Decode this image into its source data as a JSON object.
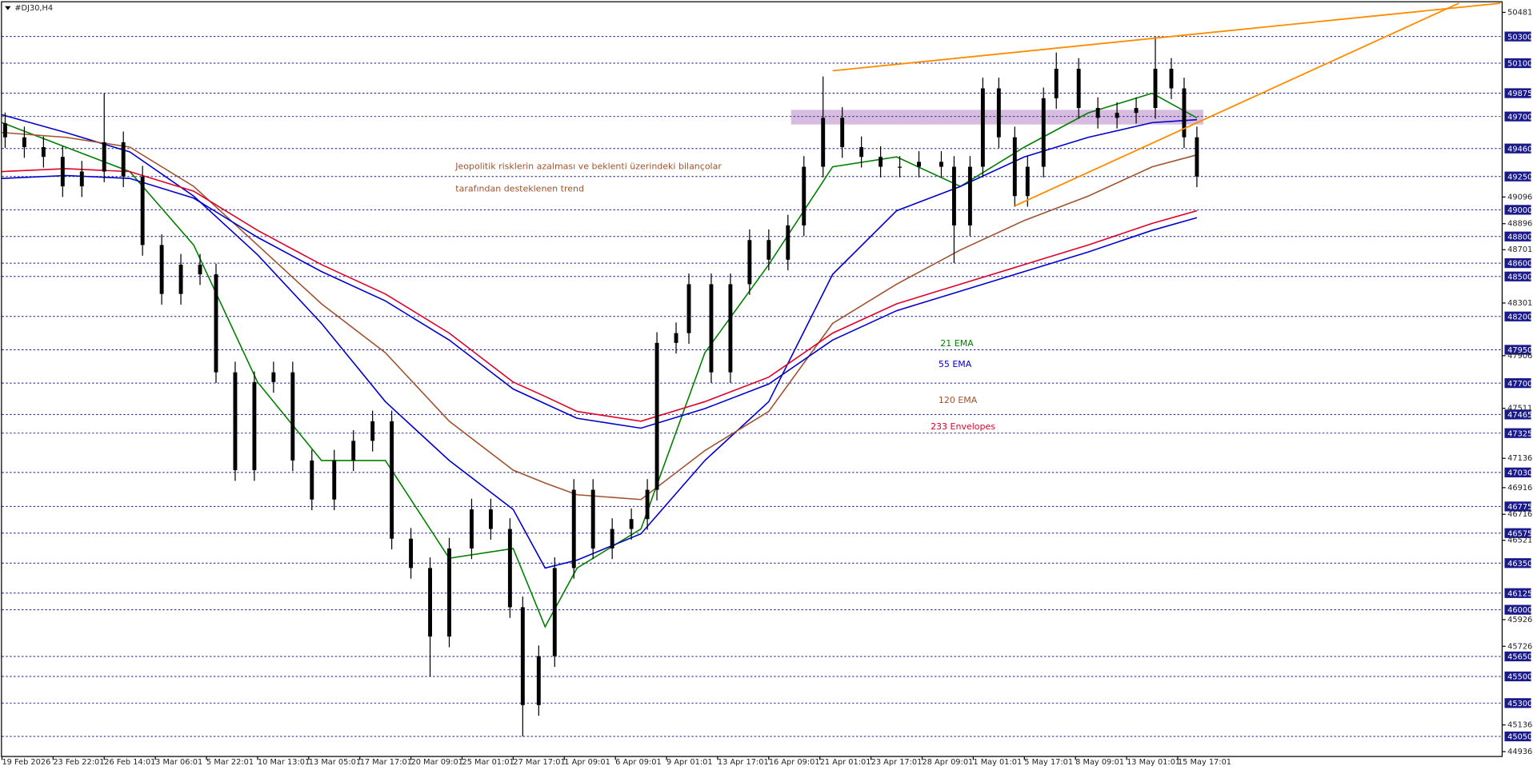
{
  "chart_data": {
    "type": "candlestick",
    "title": "#DJ30,H4",
    "xlim": [
      0,
      470
    ],
    "ylim": [
      44903,
      50557
    ],
    "xticks": [
      {
        "value": 0,
        "label": "19 Feb 2026"
      },
      {
        "value": 16,
        "label": "23 Feb 22:01"
      },
      {
        "value": 32,
        "label": "26 Feb 14:01"
      },
      {
        "value": 48,
        "label": "3 Mar 06:01"
      },
      {
        "value": 64,
        "label": "5 Mar 22:01"
      },
      {
        "value": 80,
        "label": "10 Mar 13:01"
      },
      {
        "value": 96,
        "label": "13 Mar 05:01"
      },
      {
        "value": 112,
        "label": "17 Mar 17:01"
      },
      {
        "value": 128,
        "label": "20 Mar 09:01"
      },
      {
        "value": 144,
        "label": "25 Mar 01:01"
      },
      {
        "value": 160,
        "label": "27 Mar 17:01"
      },
      {
        "value": 176,
        "label": "1 Apr 09:01"
      },
      {
        "value": 192,
        "label": "6 Apr 09:01"
      },
      {
        "value": 208,
        "label": "9 Apr 01:01"
      },
      {
        "value": 224,
        "label": "13 Apr 17:01"
      },
      {
        "value": 240,
        "label": "16 Apr 09:01"
      },
      {
        "value": 256,
        "label": "21 Apr 01:01"
      },
      {
        "value": 272,
        "label": "23 Apr 17:01"
      },
      {
        "value": 288,
        "label": "28 Apr 09:01"
      },
      {
        "value": 304,
        "label": "1 May 01:01"
      },
      {
        "value": 320,
        "label": "5 May 17:01"
      },
      {
        "value": 336,
        "label": "8 May 09:01"
      },
      {
        "value": 352,
        "label": "13 May 01:01"
      },
      {
        "value": 368,
        "label": "15 May 17:01"
      }
    ],
    "yticks": [
      50481,
      49096,
      48896,
      48701,
      48301,
      47906,
      47511,
      47136,
      46916,
      46716,
      46521,
      45926,
      45726,
      45136,
      44936
    ],
    "levels": [
      50300,
      50100,
      49875,
      49700,
      49460,
      49250,
      49000,
      48800,
      48600,
      48500,
      48200,
      47950,
      47700,
      47465,
      47325,
      47030,
      46775,
      46575,
      46350,
      46125,
      46000,
      45650,
      45500,
      45300,
      45050
    ],
    "level_color": "#1a1a8c",
    "candle_color": "#000000",
    "x": [
      1,
      7,
      13,
      19,
      25,
      32,
      38,
      44,
      50,
      56,
      62,
      67,
      73,
      79,
      85,
      91,
      97,
      104,
      110,
      116,
      122,
      128,
      134,
      140,
      147,
      153,
      159,
      163,
      168,
      173,
      179,
      185,
      191,
      197,
      202,
      205,
      211,
      215,
      222,
      228,
      234,
      240,
      246,
      251,
      257,
      263,
      269,
      275,
      281,
      287,
      294,
      298,
      303,
      307,
      312,
      317,
      321,
      326,
      330,
      337,
      343,
      349,
      355,
      361,
      366,
      370,
      374
    ],
    "open": [
      49650,
      49544,
      49470,
      49397,
      49176,
      49287,
      49507,
      49250,
      48736,
      48369,
      48589,
      48516,
      47781,
      47047,
      47708,
      47781,
      47120,
      46827,
      47120,
      47267,
      47414,
      46533,
      46313,
      45799,
      46460,
      46753,
      46606,
      46019,
      45285,
      45652,
      46313,
      46900,
      46460,
      46606,
      46680,
      46900,
      48002,
      48075,
      48442,
      47781,
      48442,
      48773,
      48626,
      48883,
      49323,
      49690,
      49470,
      49397,
      49323,
      49323,
      49360,
      49323,
      48883,
      49323,
      49911,
      49544,
      49103,
      49323,
      49837,
      50058,
      49764,
      49690,
      49727,
      49764,
      50058,
      49911,
      49544
    ],
    "high": [
      49730,
      49624,
      49550,
      49477,
      49367,
      49874,
      49587,
      49330,
      48816,
      48669,
      48669,
      48596,
      47861,
      47788,
      47861,
      47861,
      47200,
      47200,
      47347,
      47494,
      47494,
      46613,
      46393,
      46540,
      46833,
      46833,
      46686,
      46099,
      45732,
      46393,
      46980,
      46980,
      46686,
      46760,
      46980,
      48082,
      48155,
      48522,
      48522,
      48522,
      48853,
      48853,
      48963,
      49403,
      50000,
      49770,
      49550,
      49477,
      49403,
      49440,
      49440,
      49403,
      49403,
      49991,
      49991,
      49624,
      49403,
      49917,
      50180,
      50138,
      49844,
      49807,
      49844,
      50300,
      50138,
      49991,
      49624
    ],
    "low": [
      49464,
      49390,
      49317,
      49096,
      49096,
      49207,
      49170,
      48656,
      48289,
      48289,
      48436,
      47701,
      46967,
      46967,
      47628,
      47040,
      46747,
      46747,
      47040,
      47187,
      46453,
      46233,
      45500,
      45719,
      46380,
      46526,
      45939,
      45050,
      45205,
      45572,
      46233,
      46380,
      46380,
      46526,
      46600,
      46820,
      47922,
      47995,
      47701,
      47701,
      48362,
      48546,
      48546,
      48803,
      49243,
      49390,
      49317,
      49243,
      49243,
      49243,
      49243,
      48600,
      48803,
      49243,
      49464,
      49023,
      49023,
      49243,
      49757,
      49684,
      49610,
      49610,
      49647,
      49684,
      49831,
      49464,
      49170
    ],
    "close": [
      49544,
      49470,
      49397,
      49176,
      49287,
      49507,
      49250,
      48736,
      48369,
      48589,
      48516,
      47781,
      47047,
      47708,
      47781,
      47120,
      46827,
      47120,
      47267,
      47414,
      46533,
      46313,
      45799,
      46460,
      46753,
      46606,
      46019,
      45285,
      45652,
      46313,
      46900,
      46460,
      46606,
      46680,
      46900,
      48002,
      48075,
      48442,
      47781,
      48442,
      48773,
      48626,
      48883,
      49323,
      49690,
      49470,
      49397,
      49323,
      49323,
      49360,
      49323,
      48883,
      49323,
      49911,
      49544,
      49103,
      49323,
      49837,
      50058,
      49764,
      49690,
      49727,
      49764,
      50058,
      49911,
      49544,
      49250
    ],
    "series": [
      {
        "name": "21 EMA",
        "color": "#008000",
        "x": [
          0,
          20,
          40,
          60,
          80,
          100,
          120,
          140,
          160,
          170,
          180,
          200,
          220,
          240,
          260,
          280,
          300,
          320,
          340,
          360,
          374
        ],
        "values": [
          49654,
          49470,
          49287,
          48736,
          47708,
          47120,
          47120,
          46386,
          46460,
          45872,
          46313,
          46606,
          47928,
          48589,
          49323,
          49397,
          49176,
          49470,
          49727,
          49874,
          49690
        ]
      },
      {
        "name": "55 EMA",
        "color": "#0000cc",
        "x": [
          0,
          20,
          40,
          60,
          80,
          100,
          120,
          140,
          160,
          170,
          180,
          200,
          220,
          240,
          260,
          280,
          300,
          320,
          340,
          360,
          374
        ],
        "values": [
          49713,
          49580,
          49434,
          49103,
          48663,
          48148,
          47561,
          47120,
          46753,
          46313,
          46372,
          46570,
          47120,
          47561,
          48516,
          48993,
          49176,
          49397,
          49544,
          49654,
          49676
        ]
      },
      {
        "name": "120 EMA",
        "color": "#a0522d",
        "x": [
          0,
          20,
          40,
          60,
          80,
          100,
          120,
          140,
          160,
          170,
          180,
          200,
          220,
          240,
          260,
          280,
          300,
          320,
          340,
          360,
          374
        ],
        "values": [
          49580,
          49544,
          49470,
          49176,
          48736,
          48295,
          47928,
          47414,
          47047,
          46950,
          46863,
          46827,
          47194,
          47488,
          48148,
          48442,
          48699,
          48920,
          49103,
          49323,
          49412
        ]
      },
      {
        "name": "233 Envelopes",
        "color": "#e0002a",
        "x": [
          0,
          20,
          40,
          60,
          80,
          100,
          120,
          140,
          160,
          170,
          180,
          200,
          220,
          240,
          260,
          280,
          300,
          320,
          340,
          360,
          374
        ],
        "values": [
          49287,
          49309,
          49287,
          49140,
          48846,
          48589,
          48369,
          48075,
          47708,
          47600,
          47488,
          47414,
          47561,
          47745,
          48075,
          48295,
          48442,
          48589,
          48736,
          48898,
          48993
        ]
      },
      {
        "color": "#0000cc",
        "x": [
          0,
          20,
          40,
          60,
          80,
          100,
          120,
          140,
          160,
          170,
          180,
          200,
          220,
          240,
          260,
          280,
          300,
          320,
          340,
          360,
          374
        ],
        "values": [
          49235,
          49257,
          49235,
          49088,
          48794,
          48537,
          48317,
          48023,
          47656,
          47546,
          47436,
          47362,
          47509,
          47693,
          48023,
          48243,
          48390,
          48537,
          48684,
          48846,
          48941
        ]
      }
    ],
    "trendlines": [
      {
        "color": "#ff8c00",
        "x": [
          260,
          469
        ],
        "values": [
          50043,
          50550
        ]
      },
      {
        "color": "#ff8c00",
        "x": [
          317,
          456
        ],
        "values": [
          49030,
          50550
        ]
      }
    ],
    "zone": {
      "color": "#c9a6d6",
      "x": [
        247,
        376
      ],
      "values": [
        49640,
        49750
      ]
    },
    "annotation_color": "#a0522d",
    "annotations": [
      "Jeopolitik risklerin azalması ve beklenti üzerindeki bilançolar",
      "tarafından desteklenen trend"
    ]
  }
}
